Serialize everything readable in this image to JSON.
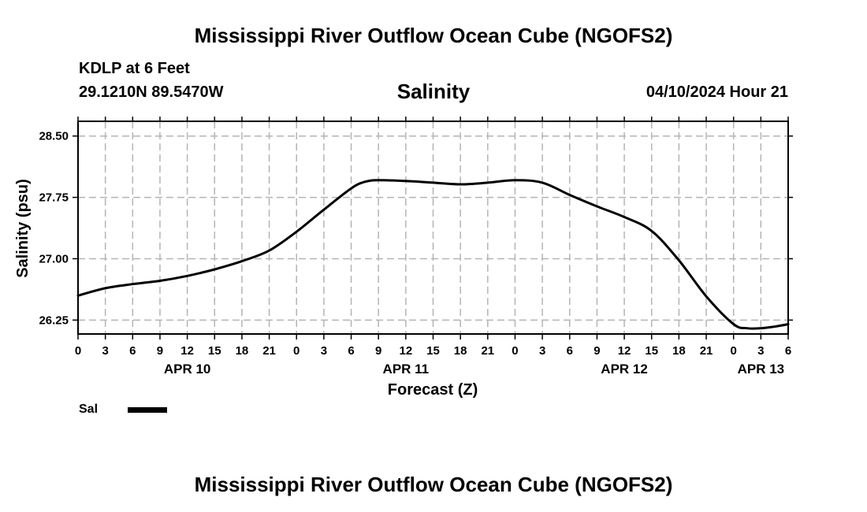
{
  "header": {
    "main_title": "Mississippi River Outflow Ocean Cube (NGOFS2)",
    "station": "KDLP at 6 Feet",
    "coords": "29.1210N  89.5470W",
    "variable": "Salinity",
    "datetime": "04/10/2024 Hour 21"
  },
  "footer": {
    "title": "Mississippi River Outflow Ocean Cube (NGOFS2)"
  },
  "legend": {
    "label": "Sal"
  },
  "chart_data": {
    "type": "line",
    "title": "Salinity",
    "xlabel": "Forecast (Z)",
    "ylabel": "Salinity (psu)",
    "x_unit": "hours from APR 10 00Z",
    "xlim": [
      0,
      78
    ],
    "ylim": [
      26.08,
      28.68
    ],
    "yticks": [
      26.25,
      27.0,
      27.75,
      28.5
    ],
    "ytick_labels": [
      "26.25",
      "27.00",
      "27.75",
      "28.50"
    ],
    "xticks": [
      0,
      3,
      6,
      9,
      12,
      15,
      18,
      21,
      24,
      27,
      30,
      33,
      36,
      39,
      42,
      45,
      48,
      51,
      54,
      57,
      60,
      63,
      66,
      69,
      72,
      75,
      78
    ],
    "xtick_labels": [
      "0",
      "3",
      "6",
      "9",
      "12",
      "15",
      "18",
      "21",
      "0",
      "3",
      "6",
      "9",
      "12",
      "15",
      "18",
      "21",
      "0",
      "3",
      "6",
      "9",
      "12",
      "15",
      "18",
      "21",
      "0",
      "3",
      "6"
    ],
    "date_labels": [
      {
        "x": 12,
        "label": "APR 10"
      },
      {
        "x": 36,
        "label": "APR 11"
      },
      {
        "x": 60,
        "label": "APR 12"
      },
      {
        "x": 75,
        "label": "APR 13"
      }
    ],
    "grid": true,
    "legend": "bottom-left",
    "series": [
      {
        "name": "Sal",
        "x": [
          0,
          3,
          6,
          9,
          12,
          15,
          18,
          21,
          24,
          27,
          30,
          31.5,
          33,
          36,
          39,
          42,
          45,
          48,
          51,
          54,
          57,
          60,
          63,
          66,
          69,
          72,
          73.5,
          75,
          76.5,
          78
        ],
        "y": [
          26.55,
          26.64,
          26.69,
          26.73,
          26.79,
          26.87,
          26.97,
          27.1,
          27.33,
          27.6,
          27.86,
          27.94,
          27.96,
          27.95,
          27.93,
          27.91,
          27.93,
          27.96,
          27.93,
          27.78,
          27.64,
          27.51,
          27.34,
          26.98,
          26.54,
          26.2,
          26.15,
          26.15,
          26.17,
          26.2
        ]
      }
    ]
  }
}
